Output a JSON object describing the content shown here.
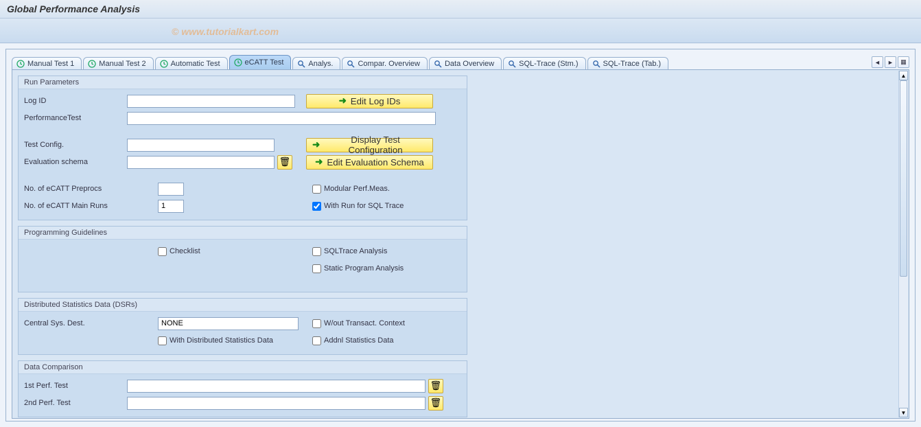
{
  "title": "Global Performance Analysis",
  "watermark": "© www.tutorialkart.com",
  "tabs": [
    {
      "label": "Manual Test 1",
      "icon": "clock"
    },
    {
      "label": "Manual Test 2",
      "icon": "clock"
    },
    {
      "label": "Automatic Test",
      "icon": "clock"
    },
    {
      "label": "eCATT Test",
      "icon": "clock",
      "active": true
    },
    {
      "label": "Analys.",
      "icon": "glass"
    },
    {
      "label": "Compar. Overview",
      "icon": "glass"
    },
    {
      "label": "Data Overview",
      "icon": "glass"
    },
    {
      "label": "SQL-Trace (Stm.)",
      "icon": "glass"
    },
    {
      "label": "SQL-Trace (Tab.)",
      "icon": "glass"
    }
  ],
  "groups": {
    "run": {
      "legend": "Run Parameters",
      "log_id_label": "Log ID",
      "log_id_value": "",
      "edit_log_ids": "Edit Log IDs",
      "perf_test_label": "PerformanceTest",
      "perf_test_value": "",
      "test_config_label": "Test Config.",
      "test_config_value": "",
      "display_test_config": "Display Test Configuration",
      "eval_schema_label": "Evaluation schema",
      "eval_schema_value": "",
      "edit_eval_schema": "Edit Evaluation Schema",
      "preprocs_label": "No. of eCATT Preprocs",
      "preprocs_value": "",
      "mainruns_label": "No. of eCATT Main Runs",
      "mainruns_value": "1",
      "modular_label": "Modular Perf.Meas.",
      "modular_checked": false,
      "withrun_label": "With Run for SQL Trace",
      "withrun_checked": true
    },
    "prog": {
      "legend": "Programming Guidelines",
      "checklist_label": "Checklist",
      "checklist_checked": false,
      "sqltrace_label": "SQLTrace Analysis",
      "sqltrace_checked": false,
      "static_label": "Static Program Analysis",
      "static_checked": false
    },
    "dsr": {
      "legend": "Distributed Statistics Data (DSRs)",
      "dest_label": "Central Sys. Dest.",
      "dest_value": "NONE",
      "without_label": "W/out Transact. Context",
      "without_checked": false,
      "withdist_label": "With Distributed Statistics Data",
      "withdist_checked": false,
      "addnl_label": "Addnl Statistics Data",
      "addnl_checked": false
    },
    "comp": {
      "legend": "Data Comparison",
      "first_label": "1st Perf. Test",
      "first_value": "",
      "second_label": "2nd Perf. Test",
      "second_value": ""
    }
  },
  "style": {
    "colors": {
      "title_bg_top": "#e8eef5",
      "tab_active_bg": "#a9cdef",
      "content_bg": "#d9e6f4",
      "group_body_bg": "#cbddf0",
      "btn_yellow_top": "#fff9bd",
      "btn_yellow_bottom": "#ffe96b",
      "border": "#94aecd"
    },
    "field_widths": {
      "log_id": 245,
      "perf_test": 450,
      "test_config": 215,
      "eval_schema": 215,
      "small_num": 38,
      "dest": 205,
      "comp": 435
    },
    "btn_widths": {
      "edit_log_ids": 185,
      "display_test_config": 185,
      "edit_eval_schema": 185
    }
  }
}
